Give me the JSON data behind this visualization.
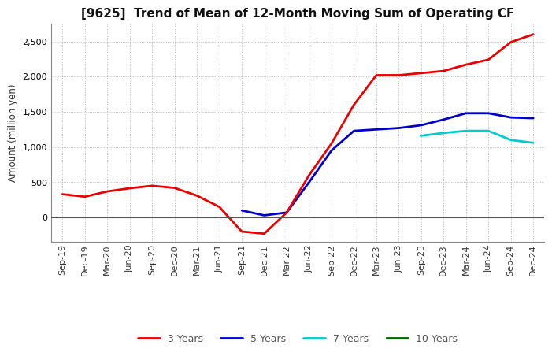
{
  "title": "[9625]  Trend of Mean of 12-Month Moving Sum of Operating CF",
  "ylabel": "Amount (million yen)",
  "x_labels": [
    "Sep-19",
    "Dec-19",
    "Mar-20",
    "Jun-20",
    "Sep-20",
    "Dec-20",
    "Mar-21",
    "Jun-21",
    "Sep-21",
    "Dec-21",
    "Mar-22",
    "Jun-22",
    "Sep-22",
    "Dec-22",
    "Mar-23",
    "Jun-23",
    "Sep-23",
    "Dec-23",
    "Mar-24",
    "Jun-24",
    "Sep-24",
    "Dec-24"
  ],
  "y3_values": [
    330,
    295,
    370,
    415,
    450,
    420,
    310,
    150,
    -200,
    -230,
    70,
    600,
    1050,
    1600,
    2020,
    2020,
    2050,
    2080,
    2170,
    2240,
    2490,
    2600
  ],
  "y5_values": [
    null,
    null,
    null,
    null,
    null,
    null,
    null,
    null,
    100,
    30,
    70,
    500,
    950,
    1230,
    1250,
    1270,
    1310,
    1390,
    1480,
    1480,
    1420,
    1410
  ],
  "y7_values": [
    null,
    null,
    null,
    null,
    null,
    null,
    null,
    null,
    null,
    null,
    null,
    null,
    null,
    null,
    null,
    null,
    1160,
    1200,
    1230,
    1230,
    1100,
    1060
  ],
  "y10_values": [
    null,
    null,
    null,
    null,
    null,
    null,
    null,
    null,
    null,
    null,
    null,
    null,
    null,
    null,
    null,
    null,
    null,
    null,
    null,
    null,
    null,
    null
  ],
  "colors": {
    "3years": "#ee0000",
    "5years": "#0000cc",
    "7years": "#00cccc",
    "10years": "#006600"
  },
  "legend_labels": [
    "3 Years",
    "5 Years",
    "7 Years",
    "10 Years"
  ],
  "legend_text_color": "#555555",
  "ylim": [
    -350,
    2750
  ],
  "yticks": [
    0,
    500,
    1000,
    1500,
    2000,
    2500
  ],
  "background_color": "#ffffff",
  "plot_bg_color": "#f8f8f8",
  "grid_color": "#aaaaaa",
  "title_fontsize": 11,
  "axis_label_fontsize": 8.5,
  "tick_fontsize": 8
}
